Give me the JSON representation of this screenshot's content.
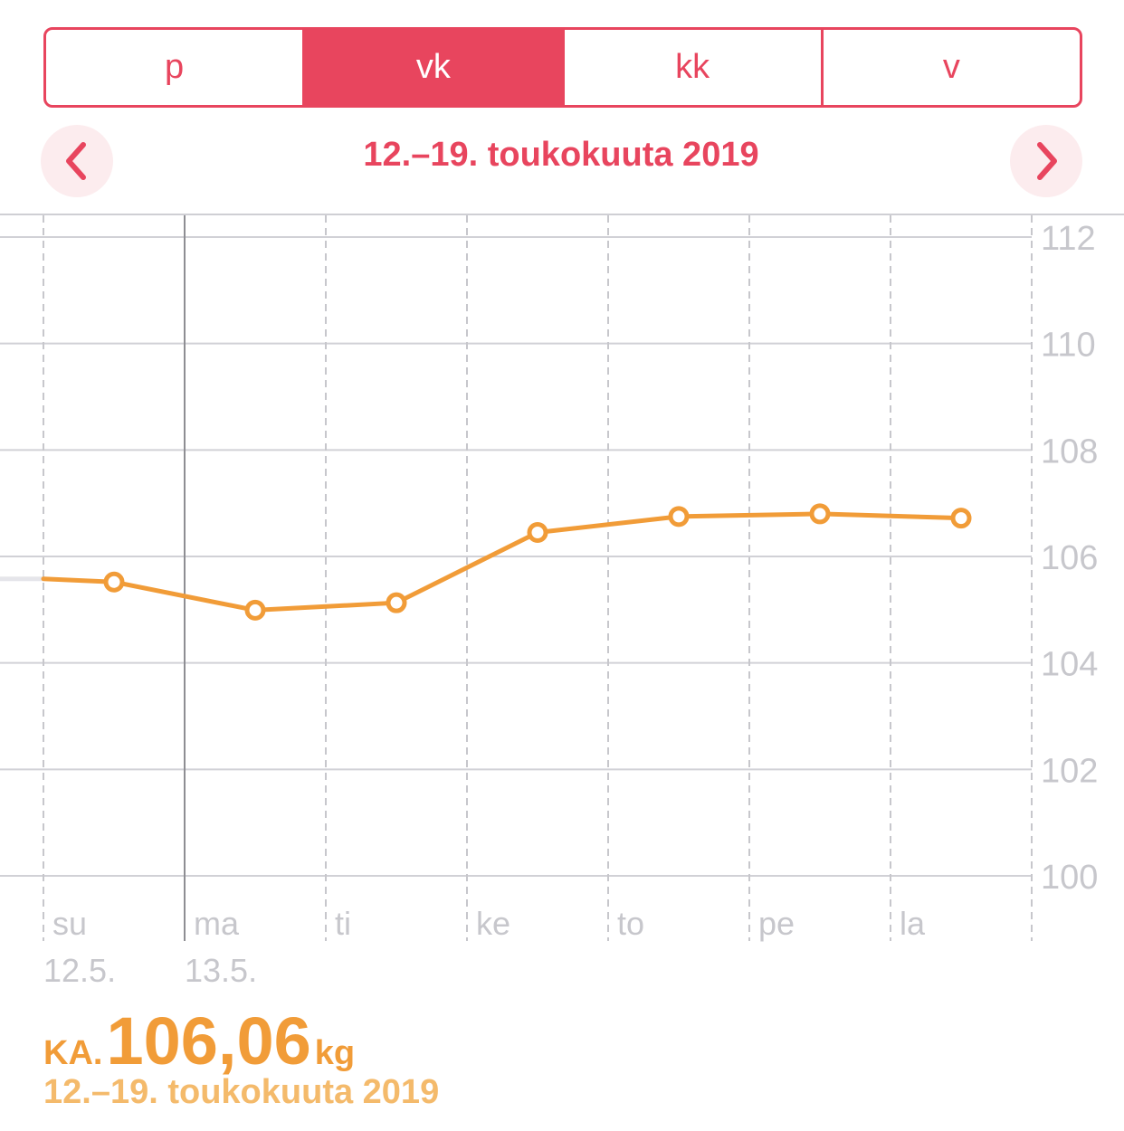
{
  "segments": [
    {
      "label": "p",
      "selected": false
    },
    {
      "label": "vk",
      "selected": true
    },
    {
      "label": "kk",
      "selected": false
    },
    {
      "label": "v",
      "selected": false
    }
  ],
  "nav": {
    "prev_icon": "chevron-left-icon",
    "next_icon": "chevron-right-icon",
    "date_range": "12.–19. toukokuuta 2019"
  },
  "colors": {
    "accent": "#e8455e",
    "series": "#f19c38",
    "summary_secondary": "#f4ba6b"
  },
  "chart_data": {
    "type": "line",
    "ylim": [
      100,
      112
    ],
    "yticks": [
      "112",
      "110",
      "108",
      "106",
      "104",
      "102",
      "100"
    ],
    "x_day_labels": [
      "su",
      "ma",
      "ti",
      "ke",
      "to",
      "pe",
      "la"
    ],
    "x_date_labels": [
      "12.5.",
      "13.5.",
      "",
      "",
      "",
      "",
      ""
    ],
    "series": [
      {
        "x": [
          "12.5.",
          "13.5.",
          "14.5.",
          "15.5.",
          "16.5.",
          "17.5.",
          "18.5."
        ],
        "values": [
          105.52,
          104.99,
          105.13,
          106.45,
          106.75,
          106.8,
          106.72
        ]
      }
    ],
    "previous_value": 105.58,
    "grid": true
  },
  "summary": {
    "label": "KA.",
    "value": "106,06",
    "unit": "kg",
    "range": "12.–19. toukokuuta 2019"
  }
}
